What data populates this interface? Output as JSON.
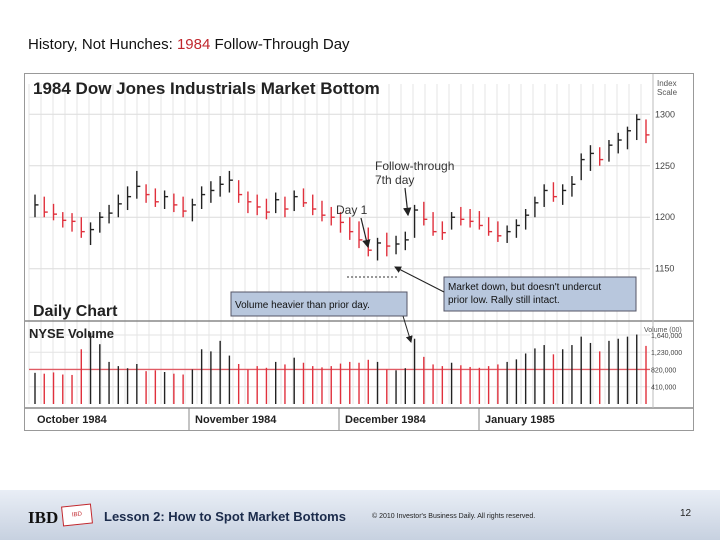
{
  "slide": {
    "title_prefix": "History, Not Hunches: ",
    "title_year": "1984",
    "title_suffix": " Follow-Through Day",
    "title_year_color": "#c0272d"
  },
  "footer": {
    "logo": "IBD",
    "mini_logo": "IBD",
    "lesson": "Lesson 2: How to Spot Market Bottoms",
    "copyright": "© 2010 Investor's Business Daily. All rights reserved.",
    "page_number": "12"
  },
  "chart_data": {
    "type": "bar",
    "title": "1984 Dow Jones Industrials Market Bottom",
    "subtitle": "Daily Chart",
    "price_axis_title": [
      "Index",
      "Scale"
    ],
    "price_ticks": [
      1150,
      1200,
      1250,
      1300
    ],
    "price_tick_labels": [
      "1150",
      "1200",
      "1250",
      "1300"
    ],
    "price_ylim": [
      1140,
      1310
    ],
    "volume_title": "NYSE Volume",
    "volume_axis_title": "Volume (00)",
    "volume_ticks": [
      410000,
      820000,
      1230000,
      1640000
    ],
    "volume_tick_labels": [
      "410,000",
      "820,000",
      "1,230,000",
      "1,640,000"
    ],
    "volume_ylim": [
      0,
      1900000
    ],
    "months": [
      "October 1984",
      "November 1984",
      "December 1984",
      "January 1985"
    ],
    "up_color": "#222222",
    "down_color": "#e0303c",
    "grid": true,
    "annotations": {
      "follow_through": [
        "Follow-through",
        "7th day"
      ],
      "day1": "Day 1",
      "volume_box": "Volume heavier than prior day.",
      "market_box": [
        "Market down, but doesn't undercut",
        "prior low. Rally still intact."
      ]
    },
    "price_bars": [
      {
        "h": 1222,
        "l": 1200,
        "c": 1212,
        "up": true
      },
      {
        "h": 1220,
        "l": 1200,
        "c": 1205,
        "up": false
      },
      {
        "h": 1213,
        "l": 1197,
        "c": 1203,
        "up": false
      },
      {
        "h": 1205,
        "l": 1190,
        "c": 1197,
        "up": false
      },
      {
        "h": 1204,
        "l": 1186,
        "c": 1196,
        "up": false
      },
      {
        "h": 1200,
        "l": 1180,
        "c": 1186,
        "up": false
      },
      {
        "h": 1195,
        "l": 1173,
        "c": 1188,
        "up": true
      },
      {
        "h": 1205,
        "l": 1185,
        "c": 1200,
        "up": true
      },
      {
        "h": 1212,
        "l": 1194,
        "c": 1204,
        "up": true
      },
      {
        "h": 1222,
        "l": 1200,
        "c": 1213,
        "up": true
      },
      {
        "h": 1230,
        "l": 1207,
        "c": 1220,
        "up": true
      },
      {
        "h": 1245,
        "l": 1218,
        "c": 1230,
        "up": true
      },
      {
        "h": 1232,
        "l": 1214,
        "c": 1222,
        "up": false
      },
      {
        "h": 1228,
        "l": 1210,
        "c": 1215,
        "up": false
      },
      {
        "h": 1226,
        "l": 1208,
        "c": 1220,
        "up": true
      },
      {
        "h": 1223,
        "l": 1205,
        "c": 1212,
        "up": false
      },
      {
        "h": 1220,
        "l": 1200,
        "c": 1206,
        "up": false
      },
      {
        "h": 1218,
        "l": 1196,
        "c": 1212,
        "up": true
      },
      {
        "h": 1230,
        "l": 1208,
        "c": 1222,
        "up": true
      },
      {
        "h": 1235,
        "l": 1214,
        "c": 1226,
        "up": true
      },
      {
        "h": 1240,
        "l": 1220,
        "c": 1232,
        "up": true
      },
      {
        "h": 1245,
        "l": 1224,
        "c": 1236,
        "up": true
      },
      {
        "h": 1236,
        "l": 1214,
        "c": 1222,
        "up": false
      },
      {
        "h": 1225,
        "l": 1204,
        "c": 1215,
        "up": false
      },
      {
        "h": 1222,
        "l": 1202,
        "c": 1210,
        "up": false
      },
      {
        "h": 1218,
        "l": 1198,
        "c": 1205,
        "up": false
      },
      {
        "h": 1224,
        "l": 1204,
        "c": 1217,
        "up": true
      },
      {
        "h": 1220,
        "l": 1200,
        "c": 1208,
        "up": false
      },
      {
        "h": 1226,
        "l": 1206,
        "c": 1220,
        "up": true
      },
      {
        "h": 1228,
        "l": 1210,
        "c": 1214,
        "up": false
      },
      {
        "h": 1222,
        "l": 1202,
        "c": 1208,
        "up": false
      },
      {
        "h": 1216,
        "l": 1196,
        "c": 1202,
        "up": false
      },
      {
        "h": 1210,
        "l": 1192,
        "c": 1200,
        "up": false
      },
      {
        "h": 1205,
        "l": 1185,
        "c": 1195,
        "up": false
      },
      {
        "h": 1200,
        "l": 1178,
        "c": 1186,
        "up": false
      },
      {
        "h": 1196,
        "l": 1170,
        "c": 1178,
        "up": false
      },
      {
        "h": 1190,
        "l": 1162,
        "c": 1168,
        "up": false
      },
      {
        "h": 1180,
        "l": 1158,
        "c": 1175,
        "up": true
      },
      {
        "h": 1185,
        "l": 1162,
        "c": 1172,
        "up": false
      },
      {
        "h": 1182,
        "l": 1164,
        "c": 1174,
        "up": true
      },
      {
        "h": 1186,
        "l": 1168,
        "c": 1178,
        "up": true
      },
      {
        "h": 1212,
        "l": 1180,
        "c": 1207,
        "up": true
      },
      {
        "h": 1215,
        "l": 1192,
        "c": 1198,
        "up": false
      },
      {
        "h": 1205,
        "l": 1182,
        "c": 1186,
        "up": false
      },
      {
        "h": 1196,
        "l": 1178,
        "c": 1185,
        "up": false
      },
      {
        "h": 1205,
        "l": 1188,
        "c": 1200,
        "up": true
      },
      {
        "h": 1210,
        "l": 1192,
        "c": 1198,
        "up": false
      },
      {
        "h": 1208,
        "l": 1190,
        "c": 1196,
        "up": false
      },
      {
        "h": 1206,
        "l": 1188,
        "c": 1192,
        "up": false
      },
      {
        "h": 1200,
        "l": 1182,
        "c": 1186,
        "up": false
      },
      {
        "h": 1196,
        "l": 1176,
        "c": 1182,
        "up": false
      },
      {
        "h": 1192,
        "l": 1175,
        "c": 1186,
        "up": true
      },
      {
        "h": 1198,
        "l": 1180,
        "c": 1192,
        "up": true
      },
      {
        "h": 1208,
        "l": 1188,
        "c": 1202,
        "up": true
      },
      {
        "h": 1220,
        "l": 1200,
        "c": 1214,
        "up": true
      },
      {
        "h": 1232,
        "l": 1210,
        "c": 1226,
        "up": true
      },
      {
        "h": 1234,
        "l": 1215,
        "c": 1220,
        "up": false
      },
      {
        "h": 1232,
        "l": 1212,
        "c": 1226,
        "up": true
      },
      {
        "h": 1240,
        "l": 1220,
        "c": 1232,
        "up": true
      },
      {
        "h": 1262,
        "l": 1236,
        "c": 1256,
        "up": true
      },
      {
        "h": 1270,
        "l": 1245,
        "c": 1262,
        "up": true
      },
      {
        "h": 1268,
        "l": 1250,
        "c": 1256,
        "up": false
      },
      {
        "h": 1275,
        "l": 1254,
        "c": 1270,
        "up": true
      },
      {
        "h": 1282,
        "l": 1262,
        "c": 1275,
        "up": true
      },
      {
        "h": 1288,
        "l": 1266,
        "c": 1284,
        "up": true
      },
      {
        "h": 1300,
        "l": 1275,
        "c": 1295,
        "up": true
      },
      {
        "h": 1295,
        "l": 1272,
        "c": 1280,
        "up": false
      }
    ],
    "volumes": [
      {
        "v": 740000,
        "up": true
      },
      {
        "v": 720000,
        "up": false
      },
      {
        "v": 750000,
        "up": false
      },
      {
        "v": 700000,
        "up": false
      },
      {
        "v": 690000,
        "up": false
      },
      {
        "v": 1300000,
        "up": false
      },
      {
        "v": 1700000,
        "up": true
      },
      {
        "v": 1420000,
        "up": true
      },
      {
        "v": 1000000,
        "up": true
      },
      {
        "v": 900000,
        "up": true
      },
      {
        "v": 850000,
        "up": true
      },
      {
        "v": 950000,
        "up": true
      },
      {
        "v": 780000,
        "up": false
      },
      {
        "v": 800000,
        "up": false
      },
      {
        "v": 760000,
        "up": true
      },
      {
        "v": 720000,
        "up": false
      },
      {
        "v": 700000,
        "up": false
      },
      {
        "v": 820000,
        "up": true
      },
      {
        "v": 1300000,
        "up": true
      },
      {
        "v": 1250000,
        "up": true
      },
      {
        "v": 1500000,
        "up": true
      },
      {
        "v": 1150000,
        "up": true
      },
      {
        "v": 950000,
        "up": false
      },
      {
        "v": 820000,
        "up": false
      },
      {
        "v": 900000,
        "up": false
      },
      {
        "v": 860000,
        "up": false
      },
      {
        "v": 1000000,
        "up": true
      },
      {
        "v": 940000,
        "up": false
      },
      {
        "v": 1100000,
        "up": true
      },
      {
        "v": 980000,
        "up": false
      },
      {
        "v": 900000,
        "up": false
      },
      {
        "v": 870000,
        "up": false
      },
      {
        "v": 900000,
        "up": false
      },
      {
        "v": 960000,
        "up": false
      },
      {
        "v": 1000000,
        "up": false
      },
      {
        "v": 980000,
        "up": false
      },
      {
        "v": 1050000,
        "up": false
      },
      {
        "v": 1000000,
        "up": true
      },
      {
        "v": 820000,
        "up": false
      },
      {
        "v": 800000,
        "up": true
      },
      {
        "v": 850000,
        "up": true
      },
      {
        "v": 1550000,
        "up": true
      },
      {
        "v": 1120000,
        "up": false
      },
      {
        "v": 940000,
        "up": false
      },
      {
        "v": 900000,
        "up": false
      },
      {
        "v": 980000,
        "up": true
      },
      {
        "v": 920000,
        "up": false
      },
      {
        "v": 880000,
        "up": false
      },
      {
        "v": 860000,
        "up": false
      },
      {
        "v": 900000,
        "up": false
      },
      {
        "v": 940000,
        "up": false
      },
      {
        "v": 1000000,
        "up": true
      },
      {
        "v": 1060000,
        "up": true
      },
      {
        "v": 1200000,
        "up": true
      },
      {
        "v": 1320000,
        "up": true
      },
      {
        "v": 1400000,
        "up": true
      },
      {
        "v": 1180000,
        "up": false
      },
      {
        "v": 1300000,
        "up": true
      },
      {
        "v": 1400000,
        "up": true
      },
      {
        "v": 1600000,
        "up": true
      },
      {
        "v": 1450000,
        "up": true
      },
      {
        "v": 1250000,
        "up": false
      },
      {
        "v": 1500000,
        "up": true
      },
      {
        "v": 1550000,
        "up": true
      },
      {
        "v": 1600000,
        "up": true
      },
      {
        "v": 1650000,
        "up": true
      },
      {
        "v": 1380000,
        "up": false
      }
    ]
  }
}
